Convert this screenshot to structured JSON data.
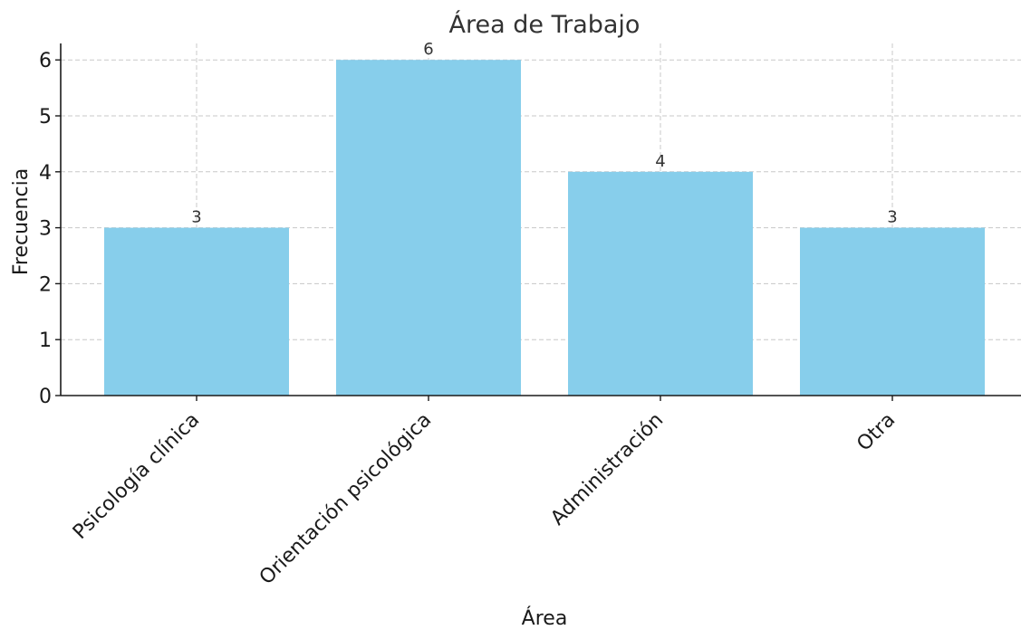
{
  "chart_data": {
    "type": "bar",
    "title": "Área de Trabajo",
    "xlabel": "Área",
    "ylabel": "Frecuencia",
    "categories": [
      "Psicología clínica",
      "Orientación psicológica",
      "Administración",
      "Otra"
    ],
    "values": [
      3,
      6,
      4,
      3
    ],
    "ylim": [
      0,
      6.3
    ],
    "yticks": [
      0,
      1,
      2,
      3,
      4,
      5,
      6
    ],
    "grid": true,
    "bar_color": "#87CEEB"
  }
}
